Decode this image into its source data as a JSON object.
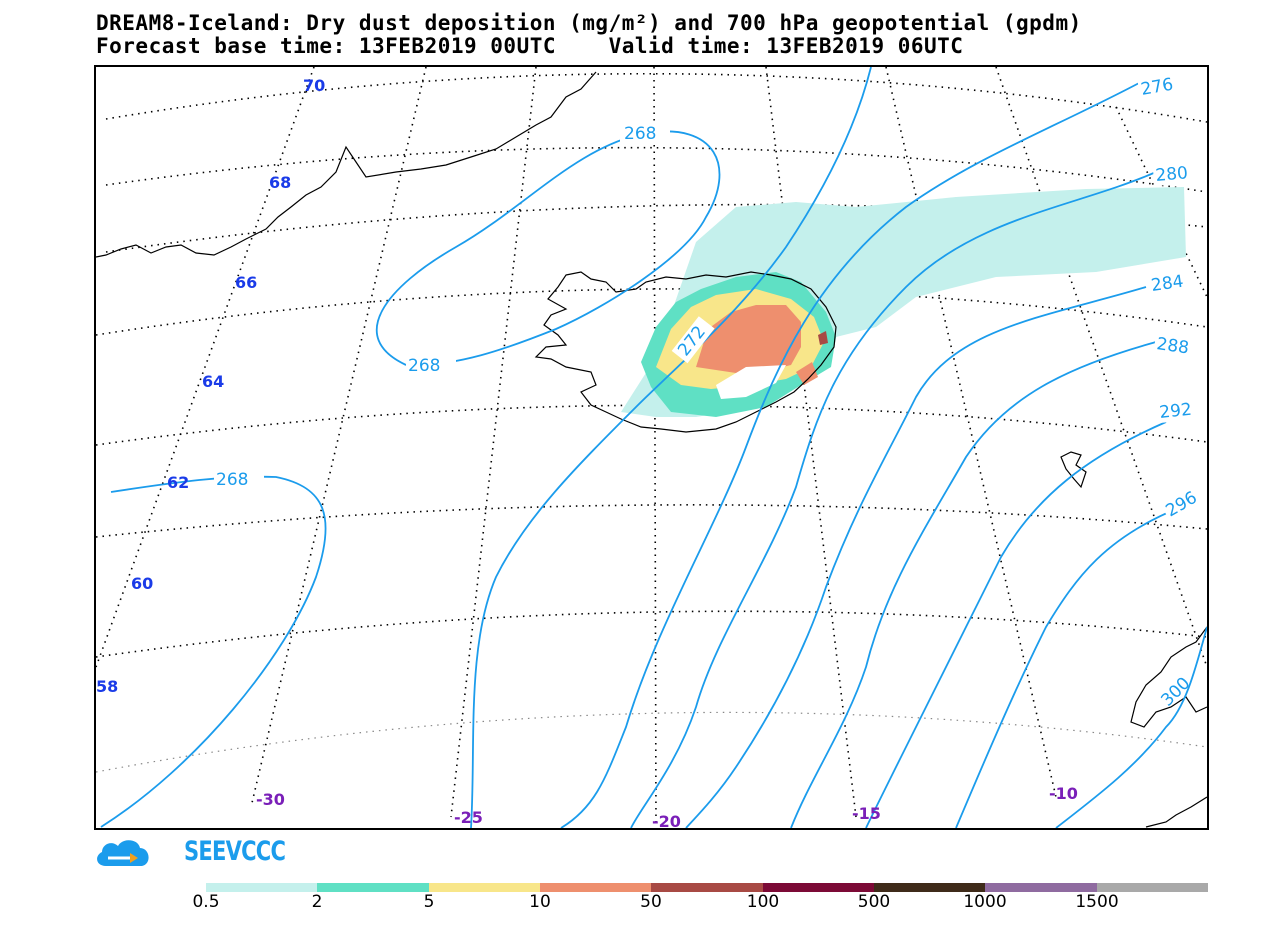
{
  "title": {
    "line1": "DREAM8-Iceland: Dry dust deposition (mg/m²) and 700 hPa geopotential (gpdm)",
    "line2": "Forecast base time: 13FEB2019 00UTC    Valid time: 13FEB2019 06UTC"
  },
  "map": {
    "lat_labels": [
      "70",
      "68",
      "66",
      "64",
      "62",
      "60",
      "58"
    ],
    "lon_labels": [
      "-30",
      "-25",
      "-20",
      "-15",
      "-10"
    ],
    "contour_labels": [
      "268",
      "268",
      "268",
      "272",
      "276",
      "280",
      "284",
      "288",
      "292",
      "296",
      "300"
    ],
    "contour_color": "#1b9cec",
    "coastline_color": "#000000"
  },
  "logo": {
    "text": "SEEVCCC",
    "color": "#1b9cec"
  },
  "legend": {
    "colors": [
      "#c4f0ec",
      "#5fe0c4",
      "#f8e68a",
      "#ee8f6e",
      "#a84a44",
      "#7c0a36",
      "#3f2b1a",
      "#8f6ba0",
      "#a9a9a9"
    ],
    "labels": [
      "0.5",
      "2",
      "5",
      "10",
      "50",
      "100",
      "500",
      "1000",
      "1500"
    ]
  }
}
